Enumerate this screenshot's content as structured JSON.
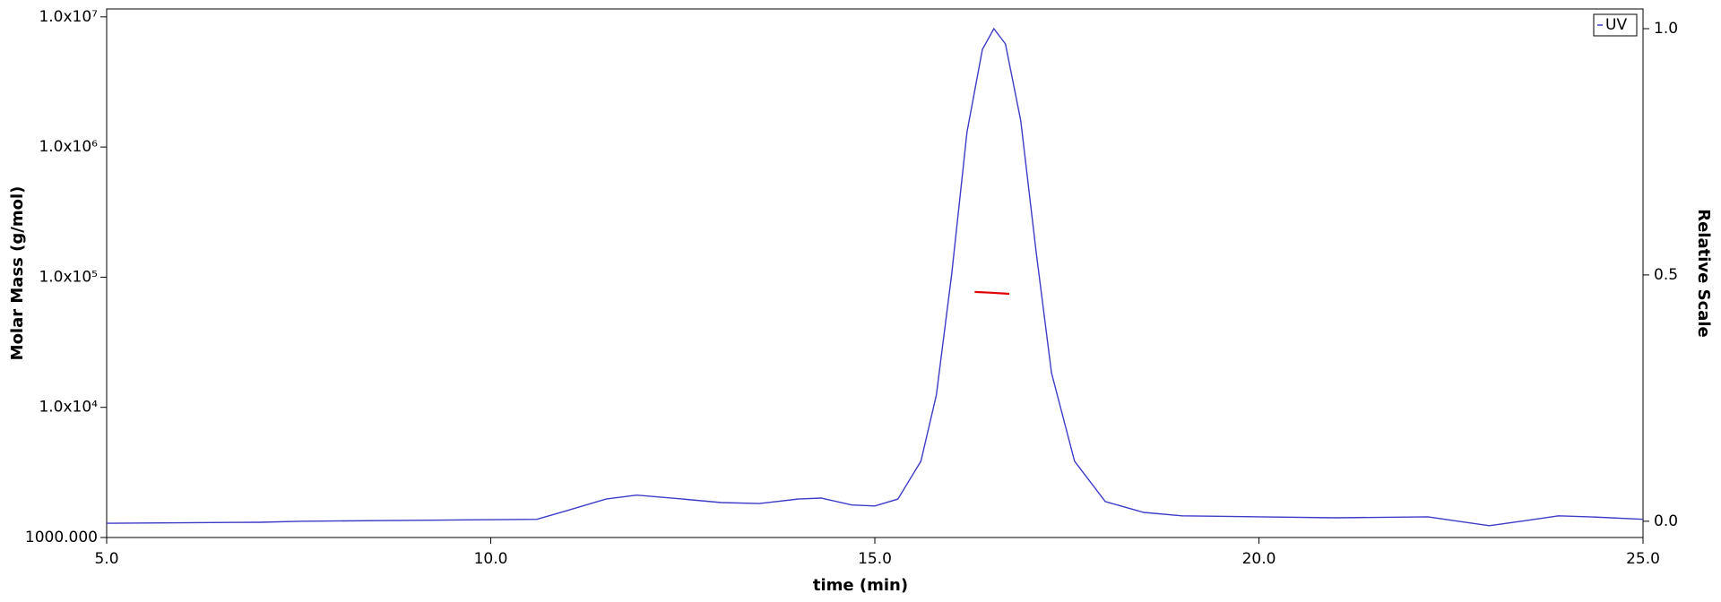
{
  "chart_data": {
    "type": "line",
    "xlabel": "time (min)",
    "ylabel": "Molar Mass (g/mol)",
    "y2label": "Relative Scale",
    "xlim": [
      5,
      25
    ],
    "ylim": [
      1000,
      11500000
    ],
    "y2lim": [
      -0.033,
      1.04
    ],
    "ylog": true,
    "legend": "upper right",
    "xticks": [
      {
        "value": 5,
        "label": "5.0"
      },
      {
        "value": 10,
        "label": "10.0"
      },
      {
        "value": 15,
        "label": "15.0"
      },
      {
        "value": 20,
        "label": "20.0"
      },
      {
        "value": 25,
        "label": "25.0"
      }
    ],
    "yticks": [
      {
        "value": 1000,
        "label": "1000.000"
      },
      {
        "value": 10000,
        "label": "1.0x10⁴"
      },
      {
        "value": 100000,
        "label": "1.0x10⁵"
      },
      {
        "value": 1000000,
        "label": "1.0x10⁶"
      },
      {
        "value": 10000000,
        "label": "1.0x10⁷"
      }
    ],
    "y2ticks": [
      {
        "value": 0,
        "label": "0.0"
      },
      {
        "value": 0.5,
        "label": "0.5"
      },
      {
        "value": 1,
        "label": "1.0"
      }
    ],
    "series": [
      {
        "name": "UV",
        "color": "#3c3cc8",
        "axis": "y2",
        "x": [
          5.0,
          7.0,
          7.5,
          9.0,
          10.6,
          11.0,
          11.5,
          11.9,
          12.5,
          13.0,
          13.5,
          14.0,
          14.3,
          14.7,
          15.0,
          15.3,
          15.6,
          15.8,
          16.0,
          16.2,
          16.4,
          16.55,
          16.7,
          16.9,
          17.1,
          17.3,
          17.6,
          18.0,
          18.5,
          19.0,
          20.0,
          21.0,
          22.2,
          22.6,
          23.0,
          23.5,
          23.9,
          24.3,
          25.0
        ],
        "values": [
          -0.004,
          -0.002,
          0.0,
          0.002,
          0.004,
          0.022,
          0.045,
          0.053,
          0.045,
          0.038,
          0.036,
          0.045,
          0.047,
          0.033,
          0.031,
          0.045,
          0.122,
          0.256,
          0.501,
          0.79,
          0.958,
          1.0,
          0.969,
          0.813,
          0.546,
          0.301,
          0.122,
          0.04,
          0.018,
          0.011,
          0.009,
          0.007,
          0.009,
          0.0,
          -0.009,
          0.002,
          0.011,
          0.009,
          0.004
        ]
      },
      {
        "color": "#e00000",
        "x": [
          16.3,
          16.5,
          16.75
        ],
        "values": [
          77000,
          76000,
          74500
        ]
      }
    ]
  }
}
